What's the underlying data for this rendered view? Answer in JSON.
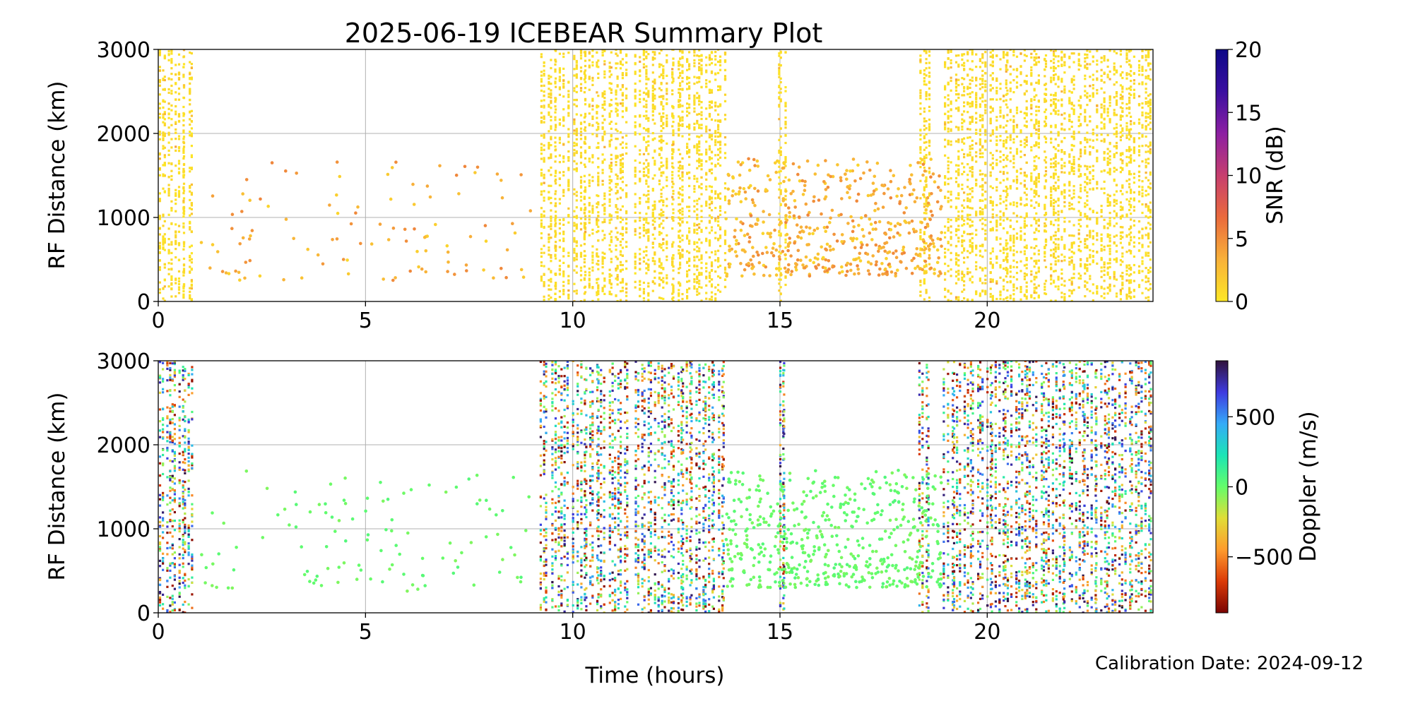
{
  "title": "2025-06-19 ICEBEAR Summary Plot",
  "calibration": "Calibration Date: 2024-09-12",
  "chart_data": [
    {
      "type": "scatter",
      "panel": "snr",
      "ylabel": "RF Distance (km)",
      "xlabel": "",
      "xlim": [
        0,
        24
      ],
      "ylim": [
        0,
        3000
      ],
      "xticks": [
        "0",
        "5",
        "10",
        "15",
        "20"
      ],
      "yticks": [
        "0",
        "1000",
        "2000",
        "3000"
      ],
      "grid": true,
      "colorbar": {
        "label": "SNR (dB)",
        "range": [
          0,
          20
        ],
        "ticks": [
          "0",
          "5",
          "10",
          "15",
          "20"
        ],
        "colors": [
          "#fde725",
          "#f8b13a",
          "#ea6a3c",
          "#c73e6e",
          "#8c1fa2",
          "#3a0fa0",
          "#0d0887"
        ]
      },
      "dense_bands_hours": [
        [
          0.0,
          0.85
        ],
        [
          9.2,
          9.9
        ],
        [
          10.0,
          11.35
        ],
        [
          11.5,
          13.7
        ],
        [
          14.95,
          15.15
        ],
        [
          18.35,
          18.65
        ],
        [
          18.95,
          24.0
        ]
      ],
      "sparse_regions": [
        {
          "x_range": [
            1.0,
            9.0
          ],
          "y_range": [
            250,
            1700
          ],
          "count": 110,
          "snr": 2
        },
        {
          "x_range": [
            13.7,
            18.9
          ],
          "y_range": [
            300,
            1700
          ],
          "count": 520,
          "snr": 3
        }
      ],
      "band_snr": 0.5
    },
    {
      "type": "scatter",
      "panel": "doppler",
      "ylabel": "RF Distance (km)",
      "xlabel": "Time (hours)",
      "xlim": [
        0,
        24
      ],
      "ylim": [
        0,
        3000
      ],
      "xticks": [
        "0",
        "5",
        "10",
        "15",
        "20"
      ],
      "yticks": [
        "0",
        "1000",
        "2000",
        "3000"
      ],
      "grid": true,
      "colorbar": {
        "label": "Doppler (m/s)",
        "range": [
          -900,
          900
        ],
        "ticks": [
          "−500",
          "0",
          "500"
        ],
        "colors": [
          "#7a0403",
          "#db3a07",
          "#fe9b2d",
          "#e1dd37",
          "#64fd6a",
          "#1be5b5",
          "#35abf8",
          "#3e3ae0",
          "#30123b"
        ]
      },
      "dense_bands_hours": [
        [
          0.0,
          0.85
        ],
        [
          9.2,
          9.9
        ],
        [
          10.0,
          11.35
        ],
        [
          11.5,
          13.7
        ],
        [
          14.95,
          15.15
        ],
        [
          18.35,
          18.65
        ],
        [
          18.95,
          24.0
        ]
      ],
      "sparse_regions": [
        {
          "x_range": [
            1.0,
            9.0
          ],
          "y_range": [
            250,
            1700
          ],
          "count": 110,
          "doppler": 0
        },
        {
          "x_range": [
            13.7,
            18.9
          ],
          "y_range": [
            300,
            1700
          ],
          "count": 520,
          "doppler": 0
        }
      ]
    }
  ]
}
